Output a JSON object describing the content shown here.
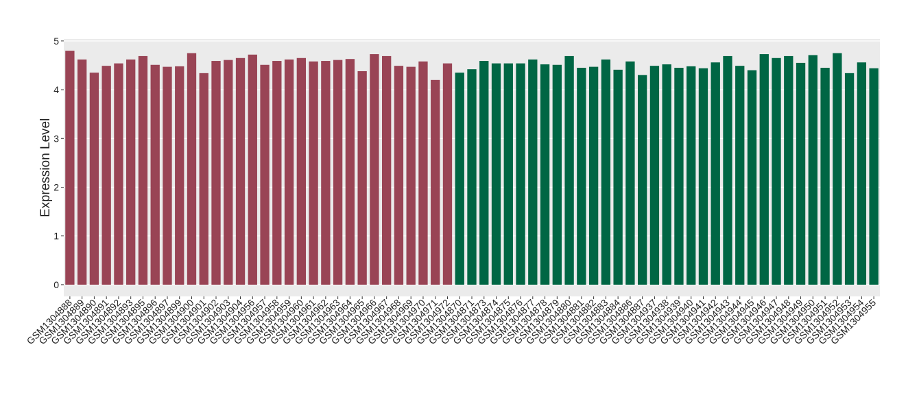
{
  "chart_data": {
    "type": "bar",
    "y_label": "Expression Level",
    "ylim": [
      -0.24,
      5.04
    ],
    "yticks": [
      0,
      1,
      2,
      3,
      4,
      5
    ],
    "grid": true,
    "series": [
      {
        "color": "#994455",
        "categories": [
          "GSM1304888",
          "GSM1304889",
          "GSM1304890",
          "GSM1304891",
          "GSM1304892",
          "GSM1304893",
          "GSM1304895",
          "GSM1304896",
          "GSM1304897",
          "GSM1304899",
          "GSM1304900",
          "GSM1304901",
          "GSM1304902",
          "GSM1304903",
          "GSM1304904",
          "GSM1304956",
          "GSM1304957",
          "GSM1304958",
          "GSM1304959",
          "GSM1304960",
          "GSM1304961",
          "GSM1304962",
          "GSM1304963",
          "GSM1304964",
          "GSM1304965",
          "GSM1304966",
          "GSM1304967",
          "GSM1304968",
          "GSM1304969",
          "GSM1304970",
          "GSM1304971",
          "GSM1304972"
        ],
        "values": [
          4.8,
          4.62,
          4.35,
          4.49,
          4.54,
          4.62,
          4.69,
          4.51,
          4.47,
          4.48,
          4.75,
          4.34,
          4.59,
          4.61,
          4.65,
          4.72,
          4.51,
          4.59,
          4.62,
          4.65,
          4.58,
          4.59,
          4.61,
          4.63,
          4.38,
          4.73,
          4.69,
          4.49,
          4.47,
          4.58,
          4.2,
          4.54
        ]
      },
      {
        "color": "#006644",
        "categories": [
          "GSM1304870",
          "GSM1304871",
          "GSM1304873",
          "GSM1304874",
          "GSM1304875",
          "GSM1304876",
          "GSM1304877",
          "GSM1304878",
          "GSM1304879",
          "GSM1304880",
          "GSM1304881",
          "GSM1304882",
          "GSM1304883",
          "GSM1304884",
          "GSM1304886",
          "GSM1304887",
          "GSM1304937",
          "GSM1304938",
          "GSM1304939",
          "GSM1304940",
          "GSM1304941",
          "GSM1304942",
          "GSM1304943",
          "GSM1304944",
          "GSM1304945",
          "GSM1304946",
          "GSM1304947",
          "GSM1304948",
          "GSM1304949",
          "GSM1304950",
          "GSM1304951",
          "GSM1304952",
          "GSM1304953",
          "GSM1304954",
          "GSM1304955"
        ],
        "values": [
          4.35,
          4.42,
          4.59,
          4.54,
          4.54,
          4.54,
          4.62,
          4.52,
          4.51,
          4.69,
          4.45,
          4.47,
          4.62,
          4.41,
          4.58,
          4.3,
          4.49,
          4.52,
          4.45,
          4.48,
          4.44,
          4.56,
          4.69,
          4.49,
          4.4,
          4.73,
          4.65,
          4.69,
          4.55,
          4.71,
          4.45,
          4.75,
          4.34,
          4.56,
          4.44
        ]
      }
    ]
  }
}
